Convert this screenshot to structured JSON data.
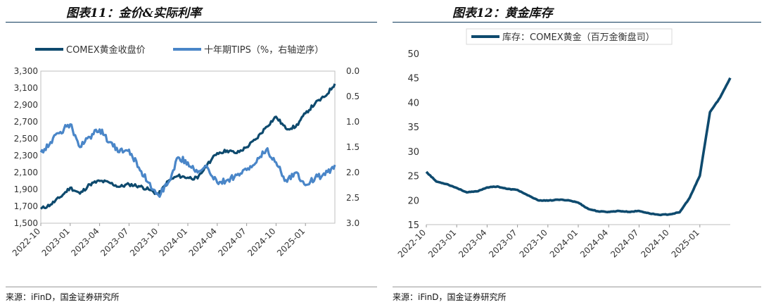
{
  "left_panel": {
    "title": "图表11：金价&实际利率",
    "source": "来源：iFinD，国金证券研究所"
  },
  "right_panel": {
    "title": "图表12：黄金库存",
    "source": "来源：iFinD，国金证券研究所"
  },
  "colors": {
    "dark_navy": "#0e4a6e",
    "light_blue": "#4a86c8",
    "rule": "#0f3b5c"
  },
  "chart_data": [
    {
      "type": "line",
      "x_range": [
        "2022-10",
        "2025-04"
      ],
      "x_ticks": [
        "2022-10",
        "2023-01",
        "2023-04",
        "2023-07",
        "2023-10",
        "2024-01",
        "2024-04",
        "2024-07",
        "2024-10",
        "2025-01"
      ],
      "y_left": {
        "ylim": [
          1500,
          3300
        ],
        "ticks": [
          "1,500",
          "1,700",
          "1,900",
          "2,100",
          "2,300",
          "2,500",
          "2,700",
          "2,900",
          "3,100",
          "3,300"
        ]
      },
      "y_right": {
        "ylim": [
          0.0,
          3.0
        ],
        "reversed": true,
        "ticks": [
          "0.0",
          "0.5",
          "1.0",
          "1.5",
          "2.0",
          "2.5",
          "3.0"
        ]
      },
      "legend_position": "top",
      "series": [
        {
          "name": "COMEX黄金收盘价",
          "axis": "left",
          "color": "#0e4a6e",
          "points": [
            [
              "2022-10-01",
              1670
            ],
            [
              "2022-11-01",
              1720
            ],
            [
              "2022-12-01",
              1810
            ],
            [
              "2023-01-01",
              1920
            ],
            [
              "2023-02-01",
              1850
            ],
            [
              "2023-03-01",
              1960
            ],
            [
              "2023-04-01",
              2000
            ],
            [
              "2023-05-01",
              1980
            ],
            [
              "2023-06-01",
              1930
            ],
            [
              "2023-07-01",
              1960
            ],
            [
              "2023-08-01",
              1940
            ],
            [
              "2023-09-01",
              1900
            ],
            [
              "2023-10-01",
              1840
            ],
            [
              "2023-11-01",
              2000
            ],
            [
              "2023-12-01",
              2060
            ],
            [
              "2024-01-01",
              2040
            ],
            [
              "2024-02-01",
              2030
            ],
            [
              "2024-03-01",
              2200
            ],
            [
              "2024-04-01",
              2330
            ],
            [
              "2024-05-01",
              2360
            ],
            [
              "2024-06-01",
              2330
            ],
            [
              "2024-07-01",
              2400
            ],
            [
              "2024-08-01",
              2500
            ],
            [
              "2024-09-01",
              2640
            ],
            [
              "2024-10-01",
              2760
            ],
            [
              "2024-11-01",
              2620
            ],
            [
              "2024-12-01",
              2640
            ],
            [
              "2025-01-01",
              2800
            ],
            [
              "2025-02-01",
              2920
            ],
            [
              "2025-03-01",
              3000
            ],
            [
              "2025-04-01",
              3150
            ]
          ]
        },
        {
          "name": "十年期TIPS（%，右轴逆序）",
          "axis": "right",
          "color": "#4a86c8",
          "points": [
            [
              "2022-10-01",
              1.6
            ],
            [
              "2022-11-01",
              1.4
            ],
            [
              "2022-12-01",
              1.2
            ],
            [
              "2023-01-01",
              1.05
            ],
            [
              "2023-02-01",
              1.5
            ],
            [
              "2023-03-01",
              1.3
            ],
            [
              "2023-04-01",
              1.15
            ],
            [
              "2023-05-01",
              1.4
            ],
            [
              "2023-06-01",
              1.6
            ],
            [
              "2023-07-01",
              1.55
            ],
            [
              "2023-08-01",
              1.9
            ],
            [
              "2023-09-01",
              2.2
            ],
            [
              "2023-10-01",
              2.45
            ],
            [
              "2023-11-01",
              2.2
            ],
            [
              "2023-12-01",
              1.7
            ],
            [
              "2024-01-01",
              1.8
            ],
            [
              "2024-02-01",
              2.0
            ],
            [
              "2024-03-01",
              1.9
            ],
            [
              "2024-04-01",
              2.2
            ],
            [
              "2024-05-01",
              2.15
            ],
            [
              "2024-06-01",
              2.05
            ],
            [
              "2024-07-01",
              1.95
            ],
            [
              "2024-08-01",
              1.8
            ],
            [
              "2024-09-01",
              1.55
            ],
            [
              "2024-10-01",
              1.8
            ],
            [
              "2024-11-01",
              2.15
            ],
            [
              "2024-12-01",
              2.0
            ],
            [
              "2025-01-01",
              2.25
            ],
            [
              "2025-02-01",
              2.1
            ],
            [
              "2025-03-01",
              2.05
            ],
            [
              "2025-04-01",
              1.85
            ]
          ]
        }
      ]
    },
    {
      "type": "line",
      "x_range": [
        "2022-10",
        "2025-04"
      ],
      "x_ticks": [
        "2022-10",
        "2023-01",
        "2023-04",
        "2023-07",
        "2023-10",
        "2024-01",
        "2024-04",
        "2024-07",
        "2024-10",
        "2025-01"
      ],
      "ylim": [
        15,
        50
      ],
      "y_ticks": [
        "15",
        "20",
        "25",
        "30",
        "35",
        "40",
        "45",
        "50"
      ],
      "legend_position": "top",
      "series": [
        {
          "name": "库存：COMEX黄金（百万金衡盘司）",
          "color": "#0e4a6e",
          "points": [
            [
              "2022-10-01",
              25.8
            ],
            [
              "2022-11-01",
              23.8
            ],
            [
              "2022-12-01",
              23.3
            ],
            [
              "2023-01-01",
              22.5
            ],
            [
              "2023-02-01",
              21.6
            ],
            [
              "2023-03-01",
              21.8
            ],
            [
              "2023-04-01",
              22.6
            ],
            [
              "2023-05-01",
              22.8
            ],
            [
              "2023-06-01",
              22.3
            ],
            [
              "2023-07-01",
              22.1
            ],
            [
              "2023-08-01",
              21.0
            ],
            [
              "2023-09-01",
              20.0
            ],
            [
              "2023-10-01",
              19.9
            ],
            [
              "2023-11-01",
              20.1
            ],
            [
              "2023-12-01",
              20.0
            ],
            [
              "2024-01-01",
              19.5
            ],
            [
              "2024-02-01",
              18.2
            ],
            [
              "2024-03-01",
              17.7
            ],
            [
              "2024-04-01",
              17.6
            ],
            [
              "2024-05-01",
              17.8
            ],
            [
              "2024-06-01",
              17.6
            ],
            [
              "2024-07-01",
              17.8
            ],
            [
              "2024-08-01",
              17.3
            ],
            [
              "2024-09-01",
              17.0
            ],
            [
              "2024-10-01",
              17.1
            ],
            [
              "2024-11-01",
              17.5
            ],
            [
              "2024-12-01",
              20.5
            ],
            [
              "2025-01-01",
              25.0
            ],
            [
              "2025-02-01",
              38.0
            ],
            [
              "2025-03-01",
              41.0
            ],
            [
              "2025-04-01",
              45.0
            ]
          ]
        }
      ]
    }
  ]
}
